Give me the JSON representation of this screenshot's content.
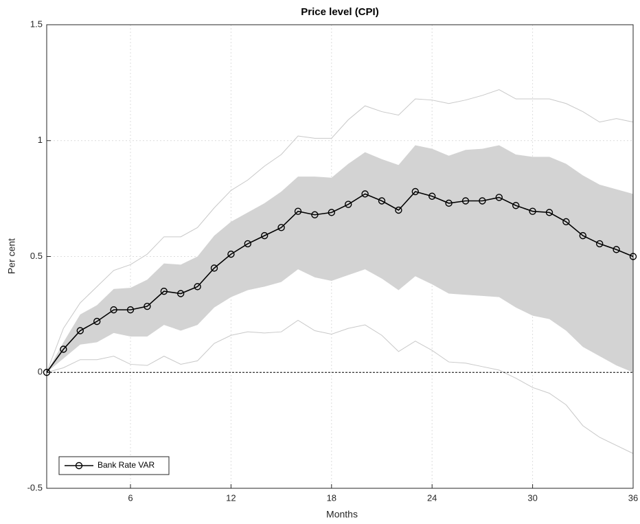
{
  "chart_data": {
    "type": "line",
    "title": "Price level (CPI)",
    "xlabel": "Months",
    "ylabel": "Per cent",
    "x": [
      1,
      2,
      3,
      4,
      5,
      6,
      7,
      8,
      9,
      10,
      11,
      12,
      13,
      14,
      15,
      16,
      17,
      18,
      19,
      20,
      21,
      22,
      23,
      24,
      25,
      26,
      27,
      28,
      29,
      30,
      31,
      32,
      33,
      34,
      35,
      36
    ],
    "series": [
      {
        "name": "Bank Rate VAR",
        "color": "#000000",
        "values": [
          0,
          0.1,
          0.18,
          0.22,
          0.27,
          0.27,
          0.285,
          0.35,
          0.34,
          0.37,
          0.45,
          0.51,
          0.555,
          0.59,
          0.625,
          0.695,
          0.68,
          0.69,
          0.725,
          0.77,
          0.74,
          0.7,
          0.78,
          0.76,
          0.73,
          0.74,
          0.74,
          0.755,
          0.72,
          0.695,
          0.69,
          0.65,
          0.59,
          0.555,
          0.53,
          0.5
        ]
      }
    ],
    "band": {
      "color": "#d3d3d3",
      "upper": [
        0,
        0.13,
        0.25,
        0.29,
        0.36,
        0.365,
        0.4,
        0.47,
        0.465,
        0.5,
        0.59,
        0.65,
        0.69,
        0.73,
        0.78,
        0.845,
        0.845,
        0.84,
        0.9,
        0.95,
        0.92,
        0.895,
        0.98,
        0.965,
        0.935,
        0.96,
        0.965,
        0.98,
        0.94,
        0.93,
        0.93,
        0.9,
        0.85,
        0.81,
        0.79,
        0.77
      ],
      "lower": [
        0,
        0.06,
        0.12,
        0.13,
        0.17,
        0.155,
        0.155,
        0.205,
        0.18,
        0.205,
        0.28,
        0.325,
        0.355,
        0.37,
        0.39,
        0.445,
        0.41,
        0.395,
        0.42,
        0.445,
        0.405,
        0.355,
        0.415,
        0.38,
        0.34,
        0.335,
        0.33,
        0.325,
        0.28,
        0.245,
        0.23,
        0.18,
        0.11,
        0.07,
        0.03,
        0
      ]
    },
    "outer": {
      "color": "#c8c8c8",
      "upper": [
        0,
        0.19,
        0.3,
        0.37,
        0.44,
        0.465,
        0.51,
        0.585,
        0.585,
        0.625,
        0.71,
        0.785,
        0.83,
        0.89,
        0.94,
        1.02,
        1.01,
        1.01,
        1.09,
        1.15,
        1.125,
        1.11,
        1.18,
        1.175,
        1.16,
        1.175,
        1.195,
        1.22,
        1.18,
        1.18,
        1.18,
        1.16,
        1.125,
        1.08,
        1.095,
        1.08
      ],
      "lower": [
        0,
        0.02,
        0.055,
        0.055,
        0.07,
        0.035,
        0.03,
        0.07,
        0.035,
        0.05,
        0.125,
        0.16,
        0.175,
        0.17,
        0.175,
        0.225,
        0.18,
        0.165,
        0.19,
        0.205,
        0.16,
        0.09,
        0.135,
        0.095,
        0.045,
        0.04,
        0.025,
        0.01,
        -0.025,
        -0.065,
        -0.09,
        -0.14,
        -0.23,
        -0.28,
        -0.315,
        -0.35
      ]
    },
    "zero_line": 0,
    "xlim": [
      1,
      36
    ],
    "xticks": [
      6,
      12,
      18,
      24,
      30,
      36
    ],
    "ylim": [
      -0.5,
      1.5
    ],
    "yticks": [
      -0.5,
      0,
      0.5,
      1,
      1.5
    ],
    "grid": true,
    "legend": "lower left"
  }
}
